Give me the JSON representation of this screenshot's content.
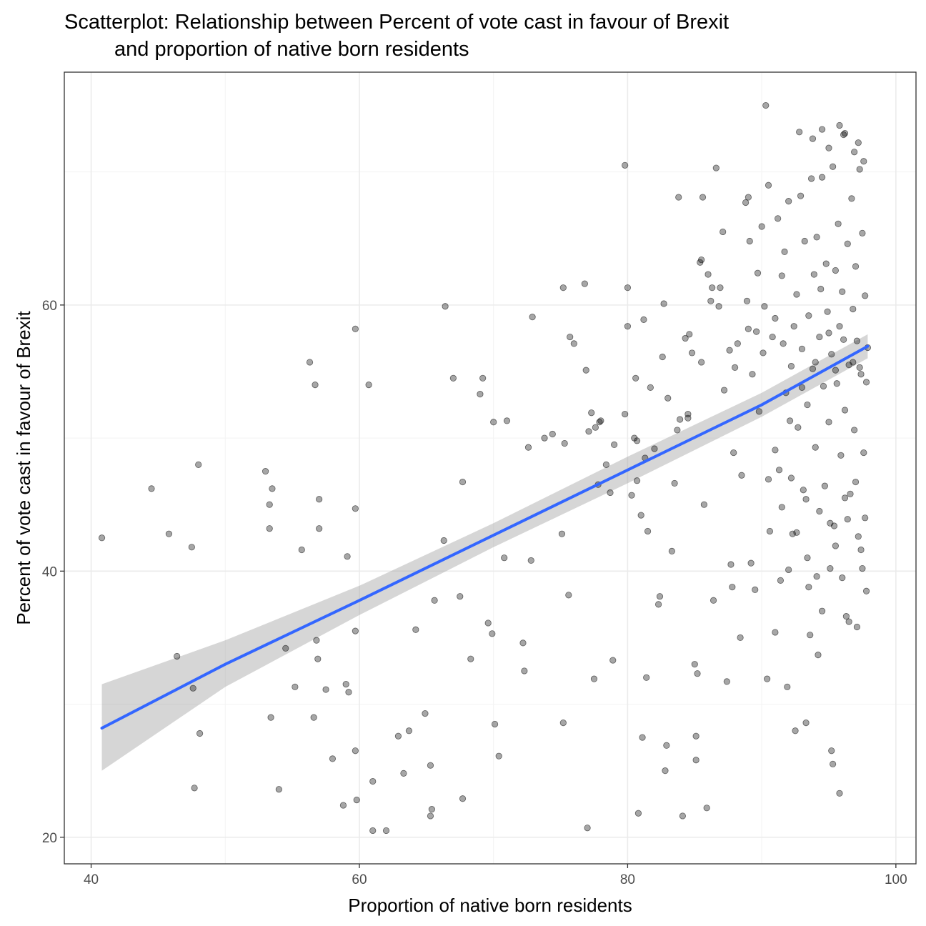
{
  "chart_data": {
    "type": "scatter",
    "title": [
      "Scatterplot: Relationship between Percent of vote cast in favour of Brexit",
      "and proportion of native born residents"
    ],
    "xlabel": "Proportion of native born residents",
    "ylabel": "Percent of vote cast in favour of Brexit",
    "xlim": [
      38,
      101.5
    ],
    "ylim": [
      18,
      77.5
    ],
    "xticks": [
      40,
      60,
      80,
      100
    ],
    "yticks": [
      20,
      40,
      60
    ],
    "xtick_labels": [
      "40",
      "60",
      "80",
      "100"
    ],
    "ytick_labels": [
      "20",
      "40",
      "60"
    ],
    "grid": true,
    "theme": "bw",
    "point_color": "#000000",
    "point_alpha": 0.35,
    "smooth": {
      "method": "linear",
      "color": "#3366FF",
      "ribbon_color": "#999999",
      "x": [
        40.8,
        50,
        60,
        70,
        80,
        90,
        97.9
      ],
      "y": [
        28.2,
        33.0,
        37.8,
        42.7,
        47.6,
        52.5,
        56.9
      ],
      "lower": [
        25.0,
        31.3,
        36.7,
        41.8,
        46.6,
        51.6,
        56.0
      ],
      "upper": [
        31.5,
        34.8,
        38.9,
        43.6,
        48.6,
        53.4,
        57.8
      ]
    },
    "points": [
      [
        40.8,
        42.5
      ],
      [
        44.5,
        46.2
      ],
      [
        45.8,
        42.8
      ],
      [
        46.4,
        33.6
      ],
      [
        47.5,
        41.8
      ],
      [
        47.6,
        31.2
      ],
      [
        48.0,
        48.0
      ],
      [
        48.1,
        27.8
      ],
      [
        47.7,
        23.7
      ],
      [
        53.0,
        47.5
      ],
      [
        53.3,
        45.0
      ],
      [
        53.3,
        43.2
      ],
      [
        53.5,
        46.2
      ],
      [
        53.4,
        29.0
      ],
      [
        54.0,
        23.6
      ],
      [
        54.5,
        34.2
      ],
      [
        55.2,
        31.3
      ],
      [
        55.7,
        41.6
      ],
      [
        56.3,
        55.7
      ],
      [
        56.6,
        29.0
      ],
      [
        56.7,
        54.0
      ],
      [
        56.8,
        34.8
      ],
      [
        56.9,
        33.4
      ],
      [
        57.0,
        45.4
      ],
      [
        57.0,
        43.2
      ],
      [
        57.5,
        31.1
      ],
      [
        58.0,
        25.9
      ],
      [
        58.8,
        22.4
      ],
      [
        59.0,
        31.5
      ],
      [
        59.1,
        41.1
      ],
      [
        59.2,
        30.9
      ],
      [
        59.7,
        26.5
      ],
      [
        59.7,
        35.5
      ],
      [
        59.7,
        44.7
      ],
      [
        59.7,
        58.2
      ],
      [
        59.8,
        22.8
      ],
      [
        60.7,
        54.0
      ],
      [
        61.0,
        24.2
      ],
      [
        61.0,
        20.5
      ],
      [
        62.0,
        20.5
      ],
      [
        62.9,
        27.6
      ],
      [
        63.3,
        24.8
      ],
      [
        63.7,
        28.0
      ],
      [
        64.2,
        35.6
      ],
      [
        64.9,
        29.3
      ],
      [
        65.3,
        25.4
      ],
      [
        65.3,
        21.6
      ],
      [
        65.4,
        22.1
      ],
      [
        65.6,
        37.8
      ],
      [
        66.3,
        42.3
      ],
      [
        66.4,
        59.9
      ],
      [
        67.0,
        54.5
      ],
      [
        67.5,
        38.1
      ],
      [
        67.7,
        46.7
      ],
      [
        67.7,
        22.9
      ],
      [
        68.3,
        33.4
      ],
      [
        69.0,
        53.3
      ],
      [
        69.2,
        54.5
      ],
      [
        69.6,
        36.1
      ],
      [
        69.9,
        35.3
      ],
      [
        70.0,
        51.2
      ],
      [
        70.1,
        28.5
      ],
      [
        70.4,
        26.1
      ],
      [
        70.8,
        41.0
      ],
      [
        71.0,
        51.3
      ],
      [
        72.2,
        34.6
      ],
      [
        72.3,
        32.5
      ],
      [
        72.6,
        49.3
      ],
      [
        72.8,
        40.8
      ],
      [
        72.9,
        59.1
      ],
      [
        73.8,
        50.0
      ],
      [
        74.4,
        50.3
      ],
      [
        75.2,
        61.3
      ],
      [
        75.1,
        42.8
      ],
      [
        75.2,
        28.6
      ],
      [
        75.3,
        49.6
      ],
      [
        75.6,
        38.2
      ],
      [
        75.7,
        57.6
      ],
      [
        76.0,
        57.1
      ],
      [
        76.8,
        61.6
      ],
      [
        76.9,
        55.1
      ],
      [
        77.0,
        20.7
      ],
      [
        77.1,
        50.5
      ],
      [
        77.3,
        51.9
      ],
      [
        77.5,
        31.9
      ],
      [
        77.6,
        50.8
      ],
      [
        77.8,
        46.5
      ],
      [
        77.9,
        51.2
      ],
      [
        78.0,
        51.3
      ],
      [
        78.4,
        48.0
      ],
      [
        78.7,
        45.9
      ],
      [
        78.9,
        33.3
      ],
      [
        79.0,
        49.5
      ],
      [
        79.8,
        51.8
      ],
      [
        79.8,
        70.5
      ],
      [
        80.0,
        58.4
      ],
      [
        80.0,
        61.3
      ],
      [
        80.3,
        45.7
      ],
      [
        80.5,
        50.0
      ],
      [
        80.6,
        54.5
      ],
      [
        80.7,
        49.8
      ],
      [
        80.7,
        46.8
      ],
      [
        80.8,
        21.8
      ],
      [
        81.0,
        44.2
      ],
      [
        81.1,
        27.5
      ],
      [
        81.2,
        58.9
      ],
      [
        81.3,
        48.5
      ],
      [
        81.4,
        32.0
      ],
      [
        81.5,
        43.0
      ],
      [
        81.7,
        53.8
      ],
      [
        82.0,
        49.2
      ],
      [
        82.3,
        37.5
      ],
      [
        82.4,
        38.1
      ],
      [
        82.6,
        56.1
      ],
      [
        82.7,
        60.1
      ],
      [
        82.9,
        26.9
      ],
      [
        82.8,
        25.0
      ],
      [
        83.0,
        53.0
      ],
      [
        83.3,
        41.5
      ],
      [
        83.5,
        46.6
      ],
      [
        83.7,
        50.6
      ],
      [
        83.8,
        68.1
      ],
      [
        83.9,
        51.4
      ],
      [
        84.1,
        21.6
      ],
      [
        84.3,
        57.5
      ],
      [
        84.5,
        51.8
      ],
      [
        84.5,
        51.5
      ],
      [
        84.6,
        57.8
      ],
      [
        84.8,
        56.4
      ],
      [
        85.0,
        33.0
      ],
      [
        85.1,
        27.6
      ],
      [
        85.1,
        25.8
      ],
      [
        85.2,
        32.3
      ],
      [
        85.4,
        63.2
      ],
      [
        85.5,
        55.7
      ],
      [
        85.5,
        63.4
      ],
      [
        85.6,
        68.1
      ],
      [
        85.7,
        45.0
      ],
      [
        85.9,
        22.2
      ],
      [
        86.0,
        62.3
      ],
      [
        86.2,
        60.3
      ],
      [
        86.3,
        61.3
      ],
      [
        86.4,
        37.8
      ],
      [
        86.6,
        70.3
      ],
      [
        86.8,
        59.9
      ],
      [
        86.9,
        61.3
      ],
      [
        87.1,
        65.5
      ],
      [
        87.2,
        53.6
      ],
      [
        87.4,
        31.7
      ],
      [
        87.6,
        56.6
      ],
      [
        87.7,
        40.5
      ],
      [
        87.8,
        38.8
      ],
      [
        87.9,
        48.9
      ],
      [
        88.0,
        55.3
      ],
      [
        88.2,
        57.1
      ],
      [
        88.4,
        35.0
      ],
      [
        88.5,
        47.2
      ],
      [
        88.8,
        67.7
      ],
      [
        88.9,
        60.3
      ],
      [
        89.0,
        68.1
      ],
      [
        89.1,
        64.8
      ],
      [
        89.2,
        40.6
      ],
      [
        89.3,
        54.8
      ],
      [
        89.5,
        38.6
      ],
      [
        89.7,
        62.4
      ],
      [
        89.8,
        52.0
      ],
      [
        90.0,
        65.9
      ],
      [
        90.1,
        56.4
      ],
      [
        90.3,
        75.0
      ],
      [
        90.5,
        69.0
      ],
      [
        90.6,
        43.0
      ],
      [
        90.8,
        57.6
      ],
      [
        91.0,
        59.0
      ],
      [
        91.2,
        66.5
      ],
      [
        91.3,
        47.6
      ],
      [
        91.4,
        39.3
      ],
      [
        91.5,
        62.2
      ],
      [
        91.7,
        64.0
      ],
      [
        91.8,
        53.4
      ],
      [
        91.9,
        31.3
      ],
      [
        92.0,
        67.8
      ],
      [
        92.2,
        55.4
      ],
      [
        92.3,
        42.8
      ],
      [
        92.4,
        58.4
      ],
      [
        92.5,
        28.0
      ],
      [
        92.6,
        60.8
      ],
      [
        92.7,
        50.8
      ],
      [
        92.9,
        68.2
      ],
      [
        93.0,
        56.7
      ],
      [
        93.1,
        46.1
      ],
      [
        93.2,
        64.8
      ],
      [
        93.3,
        28.6
      ],
      [
        93.4,
        52.5
      ],
      [
        93.5,
        59.2
      ],
      [
        93.6,
        35.2
      ],
      [
        93.7,
        69.5
      ],
      [
        93.8,
        55.2
      ],
      [
        93.9,
        62.3
      ],
      [
        94.0,
        49.3
      ],
      [
        94.1,
        65.1
      ],
      [
        94.2,
        33.7
      ],
      [
        94.3,
        57.6
      ],
      [
        94.4,
        61.2
      ],
      [
        94.5,
        69.6
      ],
      [
        94.6,
        53.9
      ],
      [
        94.7,
        46.4
      ],
      [
        94.8,
        63.1
      ],
      [
        94.9,
        59.5
      ],
      [
        95.0,
        51.2
      ],
      [
        95.1,
        40.2
      ],
      [
        95.2,
        56.3
      ],
      [
        95.3,
        70.4
      ],
      [
        95.4,
        43.4
      ],
      [
        95.5,
        62.6
      ],
      [
        95.6,
        54.1
      ],
      [
        95.7,
        66.1
      ],
      [
        95.8,
        58.4
      ],
      [
        95.9,
        48.7
      ],
      [
        96.0,
        61.0
      ],
      [
        96.1,
        72.8
      ],
      [
        96.2,
        52.1
      ],
      [
        96.3,
        36.6
      ],
      [
        96.4,
        64.6
      ],
      [
        96.5,
        55.5
      ],
      [
        96.6,
        45.8
      ],
      [
        96.7,
        68.0
      ],
      [
        96.8,
        59.7
      ],
      [
        96.9,
        50.6
      ],
      [
        97.0,
        62.9
      ],
      [
        97.1,
        57.3
      ],
      [
        97.2,
        42.6
      ],
      [
        97.3,
        70.2
      ],
      [
        97.4,
        54.8
      ],
      [
        97.5,
        65.4
      ],
      [
        97.6,
        48.9
      ],
      [
        97.7,
        60.7
      ],
      [
        97.8,
        38.5
      ],
      [
        97.9,
        56.8
      ],
      [
        90.4,
        31.9
      ],
      [
        91.0,
        35.4
      ],
      [
        92.0,
        40.1
      ],
      [
        93.5,
        38.8
      ],
      [
        94.5,
        37.0
      ],
      [
        95.2,
        26.5
      ],
      [
        95.3,
        25.5
      ],
      [
        95.8,
        23.3
      ],
      [
        96.0,
        39.5
      ],
      [
        96.5,
        36.2
      ],
      [
        97.1,
        35.8
      ],
      [
        97.5,
        40.2
      ],
      [
        92.8,
        73.0
      ],
      [
        93.8,
        72.5
      ],
      [
        94.5,
        73.2
      ],
      [
        95.0,
        71.8
      ],
      [
        95.8,
        73.5
      ],
      [
        96.2,
        72.9
      ],
      [
        96.9,
        71.5
      ],
      [
        97.2,
        72.2
      ],
      [
        97.6,
        70.8
      ],
      [
        89.0,
        58.2
      ],
      [
        89.6,
        58.0
      ],
      [
        90.2,
        59.9
      ],
      [
        91.6,
        57.1
      ],
      [
        92.1,
        51.3
      ],
      [
        93.0,
        53.8
      ],
      [
        94.0,
        55.7
      ],
      [
        95.0,
        57.9
      ],
      [
        95.5,
        55.1
      ],
      [
        96.1,
        57.4
      ],
      [
        96.8,
        55.7
      ],
      [
        97.3,
        55.3
      ],
      [
        97.8,
        54.2
      ],
      [
        91.0,
        49.1
      ],
      [
        92.2,
        47.0
      ],
      [
        93.3,
        45.4
      ],
      [
        94.3,
        44.5
      ],
      [
        95.1,
        43.6
      ],
      [
        96.2,
        45.5
      ],
      [
        97.0,
        46.7
      ],
      [
        97.7,
        44.0
      ],
      [
        90.5,
        46.9
      ],
      [
        91.5,
        44.8
      ],
      [
        92.6,
        42.9
      ],
      [
        93.4,
        41.0
      ],
      [
        94.1,
        39.6
      ],
      [
        95.5,
        41.9
      ],
      [
        96.4,
        43.9
      ],
      [
        97.4,
        41.6
      ]
    ]
  }
}
